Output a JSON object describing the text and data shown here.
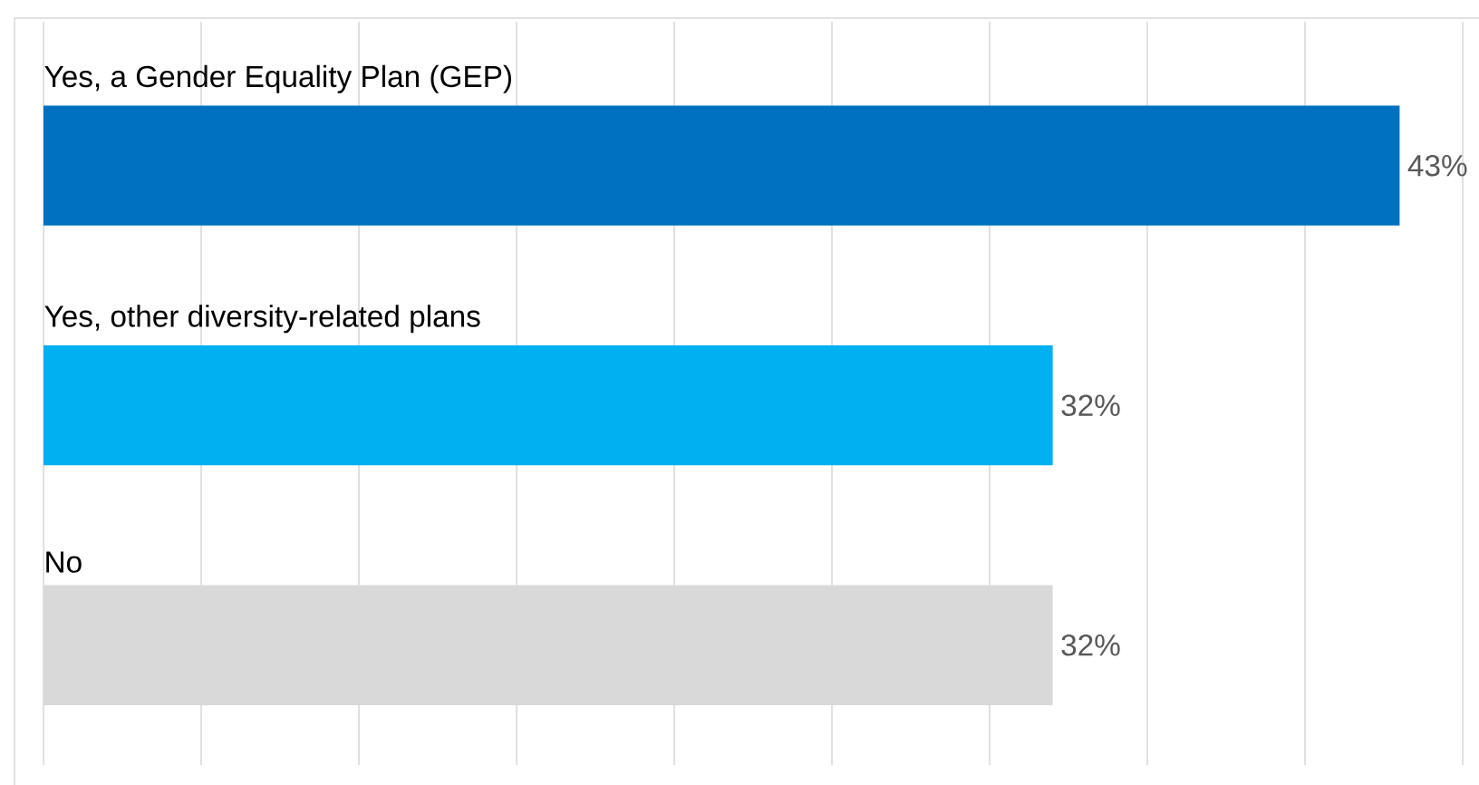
{
  "chart_data": {
    "type": "bar",
    "orientation": "horizontal",
    "categories": [
      "Yes, a Gender Equality Plan (GEP)",
      "Yes, other diversity-related plans",
      "No"
    ],
    "values": [
      43,
      32,
      32
    ],
    "colors": [
      "#0070c0",
      "#00b0f0",
      "#d9d9d9"
    ],
    "value_labels": [
      "43%",
      "32%",
      "32%"
    ],
    "xlim": [
      0,
      45
    ],
    "xticks": [
      {
        "value": 0,
        "label": null
      },
      {
        "value": 5,
        "label": null
      },
      {
        "value": 10,
        "label": null
      },
      {
        "value": 15,
        "label": null
      },
      {
        "value": 20,
        "label": null
      },
      {
        "value": 25,
        "label": null
      },
      {
        "value": 30,
        "label": null
      },
      {
        "value": 35,
        "label": null
      },
      {
        "value": 40,
        "label": null
      },
      {
        "value": 45,
        "label": null
      }
    ],
    "grid": "x"
  }
}
